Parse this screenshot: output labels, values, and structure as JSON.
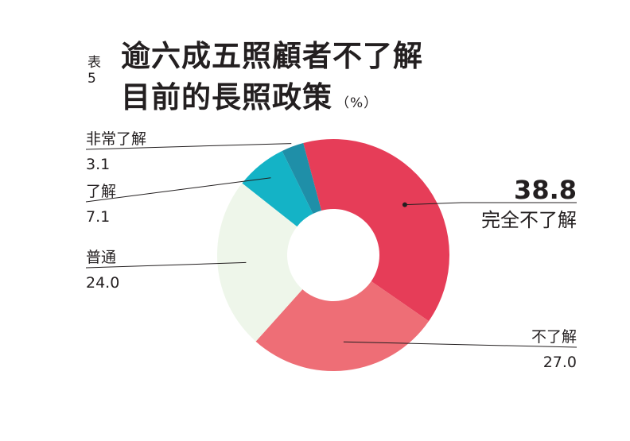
{
  "title": {
    "table_no": "表5",
    "line1": "逾六成五照顧者不了解",
    "line2": "目前的長照政策",
    "unit": "（%）"
  },
  "colors": {
    "very_understand": "#1f8fa8",
    "understand": "#14b3c6",
    "neutral": "#eef6ea",
    "not_understand": "#ee6e76",
    "not_at_all": "#e63d58",
    "leader": "#231f20"
  },
  "chart_data": {
    "type": "pie",
    "donut": true,
    "unit": "%",
    "start": "top, clockwise",
    "slices": [
      {
        "name": "完全不了解",
        "value": 38.8,
        "value_label": "38.8"
      },
      {
        "name": "不了解",
        "value": 27.0,
        "value_label": "27.0"
      },
      {
        "name": "普通",
        "value": 24.0,
        "value_label": "24.0"
      },
      {
        "name": "了解",
        "value": 7.1,
        "value_label": "7.1"
      },
      {
        "name": "非常了解",
        "value": 3.1,
        "value_label": "3.1"
      }
    ]
  }
}
